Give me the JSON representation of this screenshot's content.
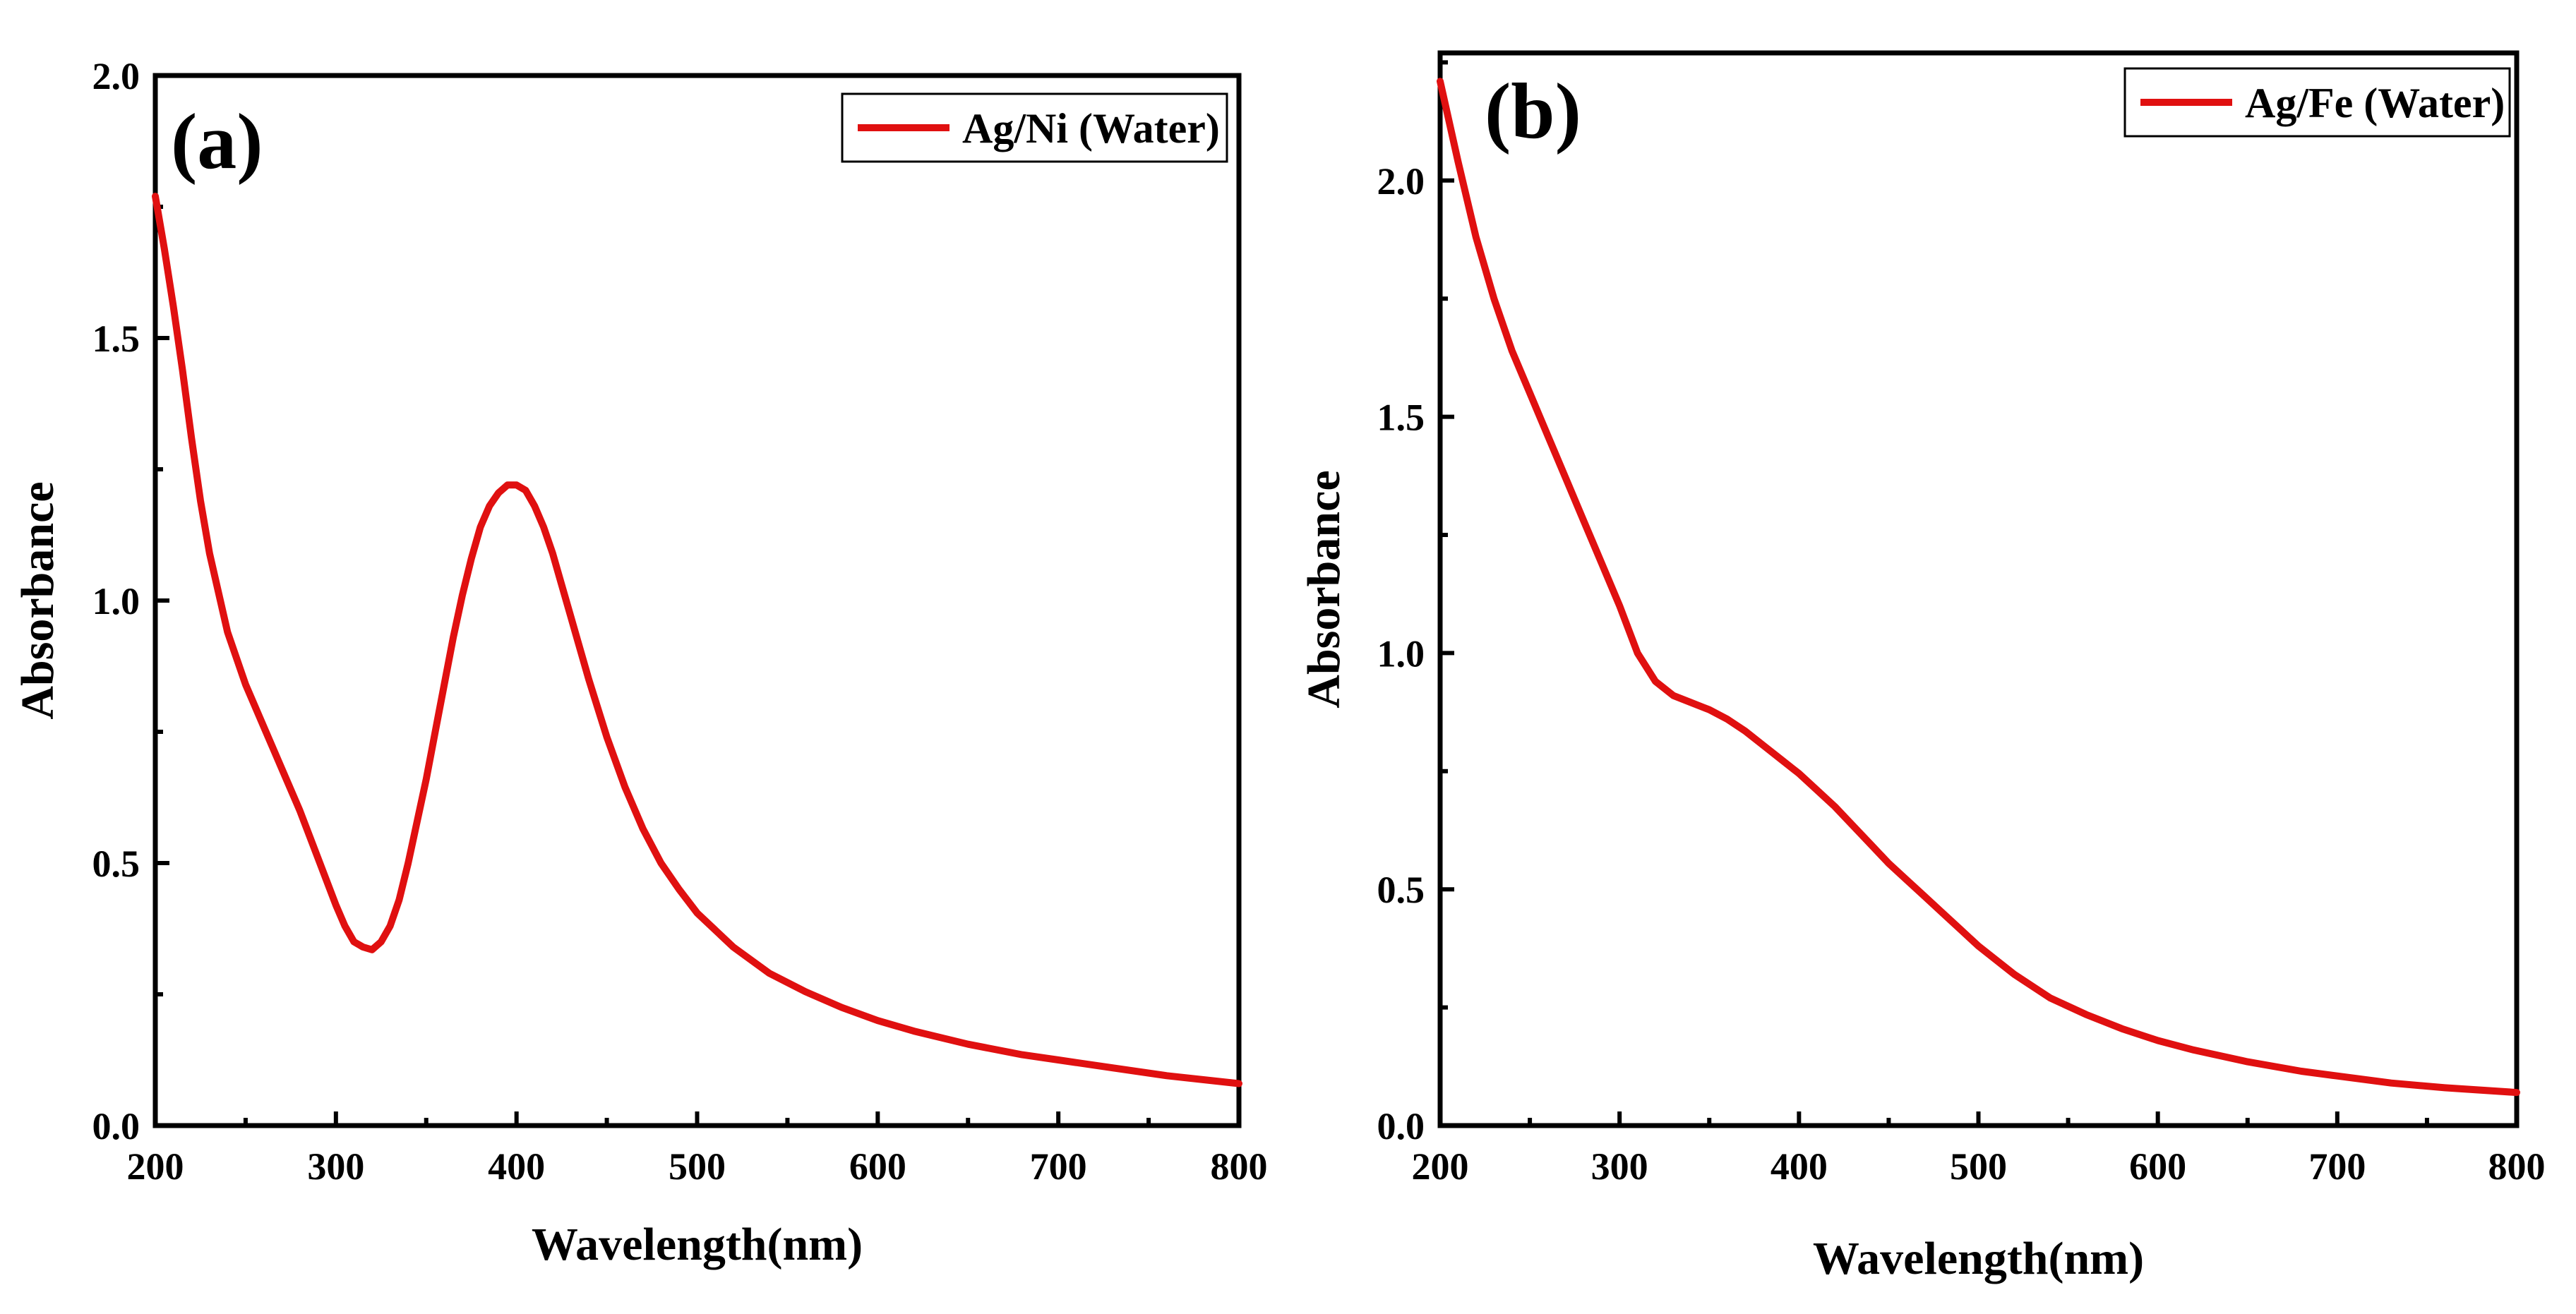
{
  "chart_data": [
    {
      "id": "a",
      "type": "line",
      "panel_label": "(a)",
      "title": "",
      "xlabel": "Wavelength(nm)",
      "ylabel": "Absorbance",
      "xlim": [
        200,
        800
      ],
      "ylim": [
        0.0,
        2.0
      ],
      "xticks": [
        200,
        300,
        400,
        500,
        600,
        700,
        800
      ],
      "yticks": [
        0.0,
        0.5,
        1.0,
        1.5,
        2.0
      ],
      "xtick_labels": [
        "200",
        "300",
        "400",
        "500",
        "600",
        "700",
        "800"
      ],
      "ytick_labels": [
        "0.0",
        "0.5",
        "1.0",
        "1.5",
        "2.0"
      ],
      "minor_x_step": 50,
      "minor_y_step": 0.25,
      "grid": false,
      "legend_position": "top-right",
      "series": [
        {
          "name": "Ag/Ni (Water)",
          "color": "#e01010",
          "x": [
            200,
            205,
            210,
            215,
            220,
            225,
            230,
            240,
            250,
            260,
            270,
            280,
            290,
            300,
            305,
            310,
            315,
            320,
            325,
            330,
            335,
            340,
            345,
            350,
            355,
            360,
            365,
            370,
            375,
            380,
            385,
            390,
            395,
            400,
            405,
            410,
            415,
            420,
            425,
            430,
            435,
            440,
            450,
            460,
            470,
            480,
            490,
            500,
            520,
            540,
            560,
            580,
            600,
            620,
            650,
            680,
            700,
            730,
            760,
            800
          ],
          "y": [
            1.77,
            1.67,
            1.56,
            1.44,
            1.31,
            1.19,
            1.09,
            0.94,
            0.84,
            0.76,
            0.68,
            0.6,
            0.51,
            0.42,
            0.38,
            0.35,
            0.34,
            0.335,
            0.35,
            0.38,
            0.43,
            0.5,
            0.58,
            0.66,
            0.75,
            0.84,
            0.93,
            1.01,
            1.08,
            1.14,
            1.18,
            1.205,
            1.22,
            1.22,
            1.21,
            1.18,
            1.14,
            1.09,
            1.03,
            0.97,
            0.91,
            0.85,
            0.74,
            0.645,
            0.565,
            0.5,
            0.45,
            0.405,
            0.34,
            0.29,
            0.255,
            0.225,
            0.2,
            0.18,
            0.155,
            0.135,
            0.125,
            0.11,
            0.095,
            0.08
          ]
        }
      ]
    },
    {
      "id": "b",
      "type": "line",
      "panel_label": "(b)",
      "title": "",
      "xlabel": "Wavelength(nm)",
      "ylabel": "Absorbance",
      "xlim": [
        200,
        800
      ],
      "ylim": [
        0.0,
        2.27
      ],
      "xticks": [
        200,
        300,
        400,
        500,
        600,
        700,
        800
      ],
      "yticks": [
        0.0,
        0.5,
        1.0,
        1.5,
        2.0
      ],
      "xtick_labels": [
        "200",
        "300",
        "400",
        "500",
        "600",
        "700",
        "800"
      ],
      "ytick_labels": [
        "0.0",
        "0.5",
        "1.0",
        "1.5",
        "2.0"
      ],
      "minor_x_step": 50,
      "minor_y_step": 0.25,
      "grid": false,
      "legend_position": "top-right",
      "series": [
        {
          "name": "Ag/Fe (Water)",
          "color": "#e01010",
          "x": [
            200,
            210,
            220,
            230,
            240,
            250,
            260,
            270,
            280,
            290,
            300,
            310,
            320,
            330,
            340,
            350,
            360,
            370,
            380,
            390,
            400,
            410,
            420,
            430,
            440,
            450,
            460,
            470,
            480,
            490,
            500,
            520,
            540,
            560,
            580,
            600,
            620,
            650,
            680,
            700,
            730,
            760,
            800
          ],
          "y": [
            2.21,
            2.04,
            1.88,
            1.75,
            1.64,
            1.55,
            1.46,
            1.37,
            1.28,
            1.19,
            1.1,
            1.0,
            0.94,
            0.91,
            0.895,
            0.88,
            0.86,
            0.835,
            0.805,
            0.775,
            0.745,
            0.71,
            0.675,
            0.635,
            0.595,
            0.555,
            0.52,
            0.485,
            0.45,
            0.415,
            0.38,
            0.32,
            0.27,
            0.235,
            0.205,
            0.18,
            0.16,
            0.135,
            0.115,
            0.105,
            0.09,
            0.08,
            0.07
          ]
        }
      ]
    }
  ]
}
